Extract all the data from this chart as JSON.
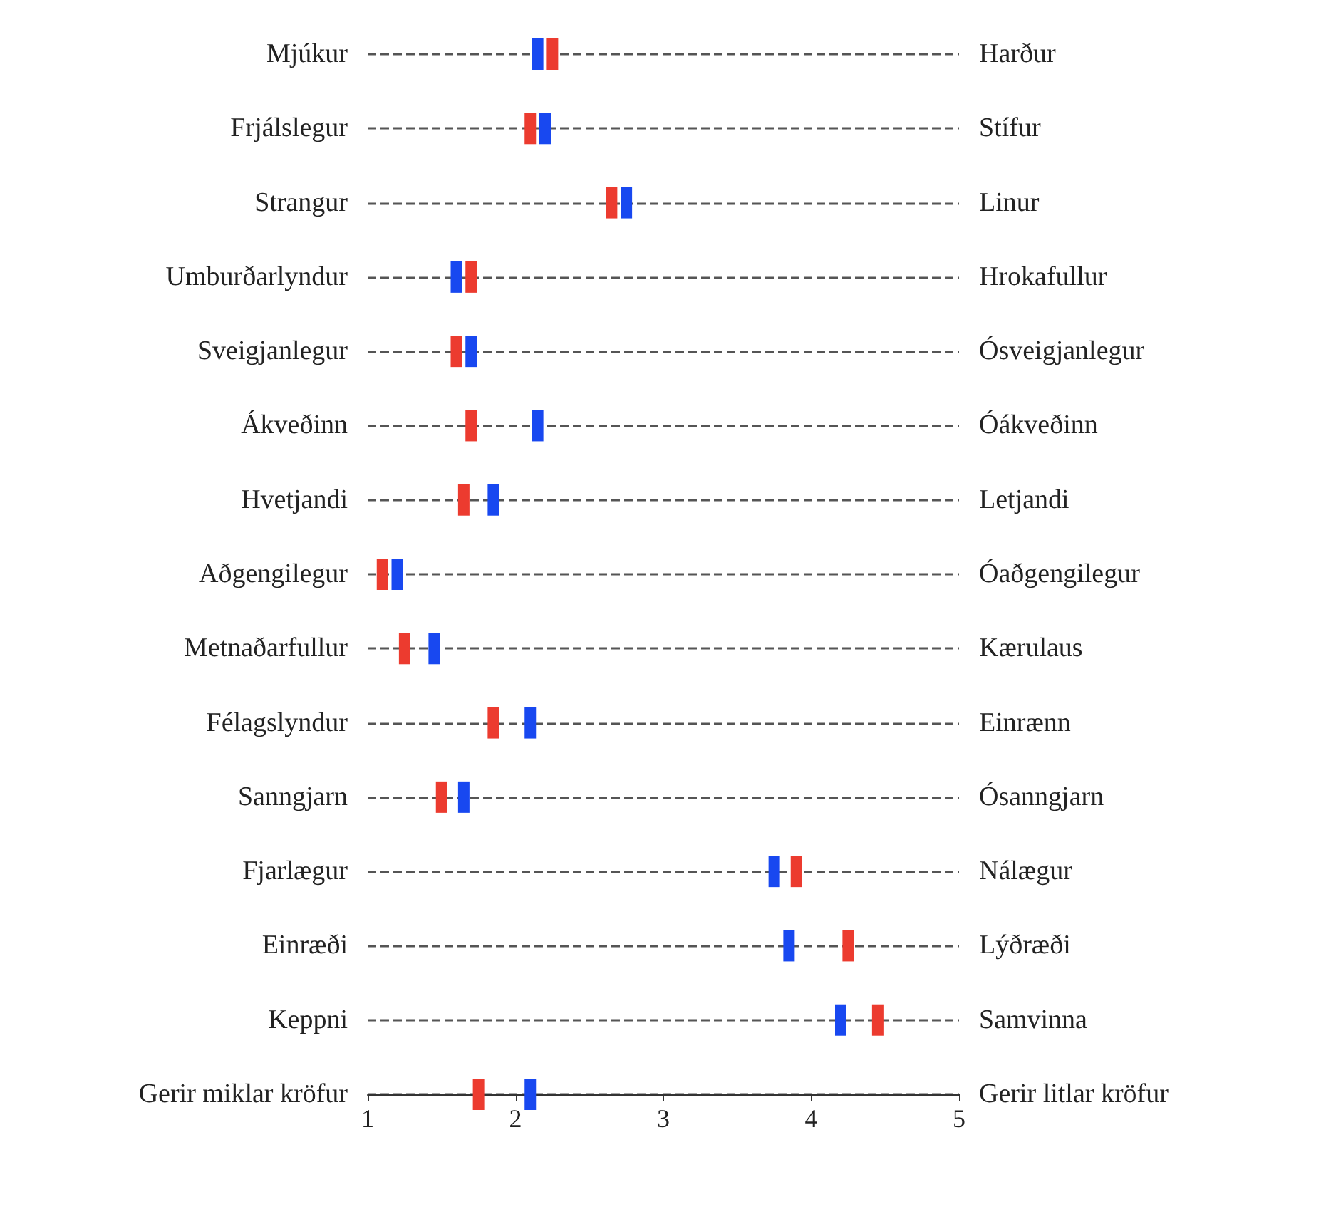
{
  "chart_data": {
    "type": "scatter",
    "orientation": "horizontal",
    "categories": [
      "Mjúkur",
      "Frjálslegur",
      "Strangur",
      "Umburðarlyndur",
      "Sveigjanlegur",
      "Ákveðinn",
      "Hvetjandi",
      "Aðgengilegur",
      "Metnaðarfullur",
      "Félagslyndur",
      "Sanngjarn",
      "Fjarlægur",
      "Einræði",
      "Keppni",
      "Gerir miklar kröfur"
    ],
    "y2_categories": [
      "Harður",
      "Stífur",
      "Linur",
      "Hrokafullur",
      "Ósveigjanlegur",
      "Óákveðinn",
      "Letjandi",
      "Óaðgengilegur",
      "Kærulaus",
      "Einrænn",
      "Ósanngjarn",
      "Nálægur",
      "Lýðræði",
      "Samvinna",
      "Gerir litlar kröfur"
    ],
    "series": [
      {
        "color": "#ec3b2f",
        "values": [
          2.25,
          2.1,
          2.65,
          1.7,
          1.6,
          1.7,
          1.65,
          1.1,
          1.25,
          1.85,
          1.5,
          3.9,
          4.25,
          4.45,
          1.75
        ]
      },
      {
        "color": "#1848f0",
        "values": [
          2.15,
          2.2,
          2.75,
          1.6,
          1.7,
          2.15,
          1.85,
          1.2,
          1.45,
          2.1,
          1.65,
          3.75,
          3.85,
          4.2,
          2.1
        ]
      }
    ],
    "xlim": [
      1,
      5
    ],
    "xticks": [
      1,
      2,
      3,
      4,
      5
    ],
    "grid": "y",
    "marker": "square"
  }
}
